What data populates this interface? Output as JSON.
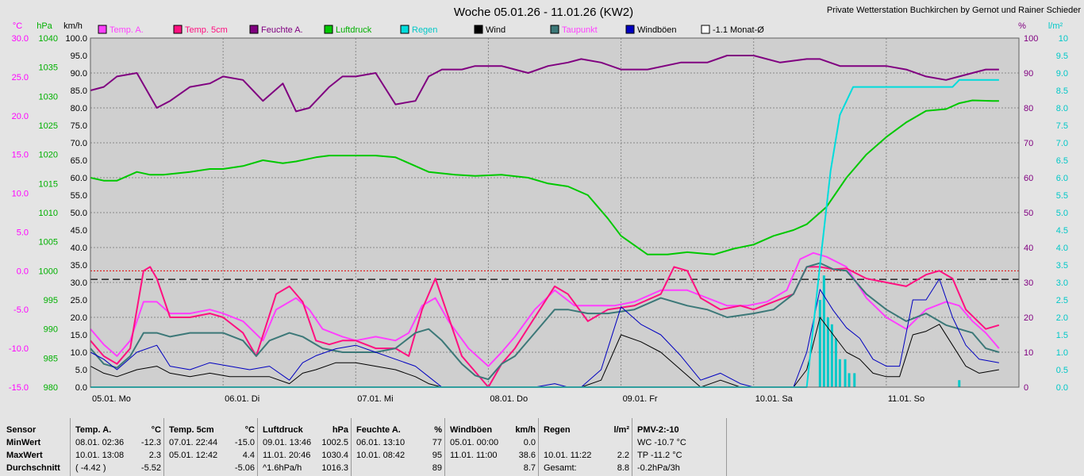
{
  "chart_data": {
    "type": "line",
    "title": "Woche 05.01.26 - 11.01.26 (KW2)",
    "credit": "Private Wetterstation Buchkirchen by Gernot und Rainer Schieder",
    "x_labels": [
      "05.01. Mo",
      "06.01. Di",
      "07.01. Mi",
      "08.01. Do",
      "09.01. Fr",
      "10.01. Sa",
      "11.01. So"
    ],
    "axes": {
      "temp": {
        "unit": "°C",
        "range": [
          -15,
          30
        ],
        "ticks": [
          "30.0",
          "25.0",
          "20.0",
          "15.0",
          "10.0",
          "5.0",
          "0.0",
          "-5.0",
          "-10.0",
          "-15.0"
        ],
        "color": "#ff00ff"
      },
      "pressure": {
        "unit": "hPa",
        "range": [
          980,
          1040
        ],
        "ticks": [
          "1040",
          "1035",
          "1030",
          "1025",
          "1020",
          "1015",
          "1010",
          "1005",
          "1000",
          "995",
          "990",
          "985",
          "980"
        ],
        "color": "#00b000"
      },
      "wind": {
        "unit": "km/h",
        "range": [
          0,
          100
        ],
        "ticks": [
          "100.0",
          "95.0",
          "90.0",
          "85.0",
          "80.0",
          "75.0",
          "70.0",
          "65.0",
          "60.0",
          "55.0",
          "50.0",
          "45.0",
          "40.0",
          "35.0",
          "30.0",
          "25.0",
          "20.0",
          "15.0",
          "10.0",
          "5.0",
          "0.0"
        ],
        "color": "#000000"
      },
      "humidity": {
        "unit": "%",
        "range": [
          0,
          100
        ],
        "ticks": [
          "100",
          "90",
          "80",
          "70",
          "60",
          "50",
          "40",
          "30",
          "20",
          "10",
          "0"
        ],
        "color": "#800080"
      },
      "rain": {
        "unit": "l/m²",
        "range": [
          0,
          10
        ],
        "ticks": [
          "10",
          "9.5",
          "9.0",
          "8.5",
          "8.0",
          "7.5",
          "7.0",
          "6.5",
          "6.0",
          "5.5",
          "5.0",
          "4.5",
          "4.0",
          "3.5",
          "3.0",
          "2.5",
          "2.0",
          "1.5",
          "1.0",
          "0.5",
          "0.0"
        ],
        "color": "#00c8c8"
      }
    },
    "legend": [
      {
        "label": "Temp. A.",
        "color": "#ff40ff",
        "text_color": "#ff40ff"
      },
      {
        "label": "Temp. 5cm",
        "color": "#ff1080",
        "text_color": "#ff1080"
      },
      {
        "label": "Feuchte A.",
        "color": "#800080",
        "text_color": "#800080"
      },
      {
        "label": "Luftdruck",
        "color": "#00c800",
        "text_color": "#00b000"
      },
      {
        "label": "Regen",
        "color": "#00dcdc",
        "text_color": "#00c8c8"
      },
      {
        "label": "Wind",
        "color": "#000000",
        "text_color": "#000000"
      },
      {
        "label": "Taupunkt",
        "color": "#3c7878",
        "text_color": "#ff40ff"
      },
      {
        "label": "Windböen",
        "color": "#0000c0",
        "text_color": "#000000"
      },
      {
        "label": "-1.1 Monat-Ø",
        "color": "#ffffff",
        "text_color": "#000000"
      }
    ],
    "reference_lines": {
      "temp_zero_dotted": 0.0,
      "monthly_mean_dashed": -1.1
    },
    "series": [
      {
        "name": "Feuchte A.",
        "axis": "humidity",
        "color": "#800080",
        "x": [
          0,
          0.1,
          0.2,
          0.35,
          0.5,
          0.6,
          0.75,
          0.9,
          1.0,
          1.15,
          1.3,
          1.45,
          1.55,
          1.65,
          1.8,
          1.9,
          2.0,
          2.15,
          2.3,
          2.45,
          2.55,
          2.65,
          2.8,
          2.9,
          3.1,
          3.3,
          3.45,
          3.6,
          3.7,
          3.85,
          4.0,
          4.2,
          4.45,
          4.65,
          4.8,
          5.0,
          5.2,
          5.4,
          5.5,
          5.65,
          5.8,
          6.0,
          6.15,
          6.3,
          6.45,
          6.55,
          6.65,
          6.75,
          6.85
        ],
        "values": [
          85,
          86,
          89,
          90,
          80,
          82,
          86,
          87,
          89,
          88,
          82,
          87,
          79,
          80,
          86,
          89,
          89,
          90,
          81,
          82,
          89,
          91,
          91,
          92,
          92,
          90,
          92,
          93,
          94,
          93,
          91,
          91,
          93,
          93,
          95,
          95,
          93,
          94,
          94,
          92,
          92,
          92,
          91,
          89,
          88,
          89,
          90,
          91,
          91
        ]
      },
      {
        "name": "Luftdruck",
        "axis": "pressure",
        "color": "#00c800",
        "x": [
          0,
          0.1,
          0.2,
          0.35,
          0.45,
          0.55,
          0.75,
          0.9,
          1.0,
          1.15,
          1.3,
          1.45,
          1.55,
          1.7,
          1.8,
          1.9,
          2.0,
          2.15,
          2.3,
          2.45,
          2.55,
          2.75,
          2.9,
          3.1,
          3.3,
          3.45,
          3.6,
          3.75,
          3.9,
          4.0,
          4.2,
          4.35,
          4.5,
          4.7,
          4.85,
          5.0,
          5.15,
          5.3,
          5.4,
          5.55,
          5.7,
          5.85,
          6.0,
          6.15,
          6.3,
          6.45,
          6.55,
          6.65,
          6.8,
          6.85
        ],
        "values": [
          1016,
          1015.5,
          1015.5,
          1017,
          1016.5,
          1016.5,
          1017,
          1017.5,
          1017.5,
          1018,
          1019,
          1018.5,
          1018.8,
          1019.5,
          1019.8,
          1019.8,
          1019.8,
          1019.8,
          1019.5,
          1018,
          1017,
          1016.5,
          1016.3,
          1016.5,
          1016,
          1015,
          1014.5,
          1013,
          1009,
          1006,
          1002.8,
          1002.8,
          1003.2,
          1002.8,
          1003.8,
          1004.5,
          1006,
          1007,
          1008,
          1011,
          1016,
          1020,
          1023,
          1025.5,
          1027.5,
          1027.8,
          1028.8,
          1029.3,
          1029.2,
          1029.2
        ]
      },
      {
        "name": "Temp. A.",
        "axis": "temp",
        "color": "#ff40ff",
        "x": [
          0,
          0.1,
          0.2,
          0.3,
          0.4,
          0.5,
          0.6,
          0.75,
          0.9,
          1.0,
          1.15,
          1.3,
          1.4,
          1.55,
          1.65,
          1.75,
          1.9,
          2.0,
          2.15,
          2.3,
          2.4,
          2.5,
          2.6,
          2.7,
          2.85,
          3.0,
          3.1,
          3.2,
          3.35,
          3.5,
          3.65,
          3.8,
          3.95,
          4.1,
          4.3,
          4.5,
          4.65,
          4.8,
          4.95,
          5.1,
          5.25,
          5.35,
          5.45,
          5.55,
          5.7,
          5.85,
          6.0,
          6.15,
          6.3,
          6.45,
          6.55,
          6.65,
          6.75,
          6.85
        ],
        "values": [
          -7.5,
          -9.5,
          -11,
          -9,
          -4,
          -4,
          -5.5,
          -5.5,
          -5,
          -5.5,
          -6.5,
          -9,
          -5,
          -3.5,
          -5,
          -7.5,
          -8.5,
          -9,
          -8.5,
          -9,
          -8,
          -4.5,
          -3.5,
          -6.5,
          -10,
          -12.3,
          -10.5,
          -8.5,
          -5,
          -2.5,
          -4.5,
          -4.5,
          -4.5,
          -4,
          -2.5,
          -2.5,
          -3.5,
          -4.5,
          -4.5,
          -4,
          -2.5,
          1.5,
          2.3,
          1.8,
          0.5,
          -3.5,
          -6,
          -7.5,
          -5,
          -4,
          -4.5,
          -6.5,
          -8,
          -10
        ]
      },
      {
        "name": "Temp. 5cm",
        "axis": "temp",
        "color": "#ff1080",
        "x": [
          0,
          0.1,
          0.2,
          0.3,
          0.4,
          0.45,
          0.5,
          0.6,
          0.75,
          0.9,
          1.0,
          1.15,
          1.25,
          1.4,
          1.5,
          1.6,
          1.7,
          1.8,
          1.9,
          2.0,
          2.15,
          2.3,
          2.4,
          2.5,
          2.6,
          2.7,
          2.8,
          2.9,
          3.0,
          3.1,
          3.2,
          3.35,
          3.5,
          3.6,
          3.75,
          3.9,
          4.1,
          4.3,
          4.4,
          4.5,
          4.6,
          4.75,
          4.9,
          5.0,
          5.15,
          5.3,
          5.4,
          5.5,
          5.6,
          5.7,
          5.85,
          6.0,
          6.15,
          6.3,
          6.4,
          6.5,
          6.6,
          6.75,
          6.85
        ],
        "values": [
          -9,
          -11,
          -12,
          -10,
          0,
          0.5,
          -1,
          -6,
          -6,
          -5.5,
          -6,
          -8,
          -11,
          -3,
          -2,
          -4,
          -9,
          -9.5,
          -9,
          -9,
          -10,
          -10,
          -11,
          -5,
          -1,
          -6,
          -11,
          -13,
          -15,
          -12,
          -10,
          -6,
          -2,
          -3,
          -6.5,
          -5,
          -4.5,
          -3,
          0.5,
          0,
          -3.5,
          -5,
          -4.5,
          -5,
          -4,
          -3,
          0.5,
          0.5,
          0.2,
          0.3,
          -1,
          -1.5,
          -2,
          -0.5,
          0,
          -1,
          -5,
          -7.5,
          -7
        ]
      },
      {
        "name": "Taupunkt",
        "axis": "temp",
        "color": "#3c7878",
        "x": [
          0,
          0.1,
          0.2,
          0.3,
          0.4,
          0.5,
          0.6,
          0.75,
          0.9,
          1.0,
          1.15,
          1.25,
          1.35,
          1.5,
          1.6,
          1.75,
          1.9,
          2.0,
          2.15,
          2.3,
          2.45,
          2.55,
          2.65,
          2.8,
          2.9,
          3.0,
          3.1,
          3.2,
          3.35,
          3.5,
          3.6,
          3.75,
          3.9,
          4.1,
          4.3,
          4.5,
          4.65,
          4.8,
          5.0,
          5.15,
          5.3,
          5.4,
          5.5,
          5.6,
          5.7,
          5.85,
          6.0,
          6.15,
          6.3,
          6.45,
          6.55,
          6.65,
          6.75,
          6.85
        ],
        "values": [
          -10,
          -12,
          -12.5,
          -11,
          -8,
          -8,
          -8.5,
          -8,
          -8,
          -8,
          -9,
          -11,
          -9,
          -8,
          -8.5,
          -10,
          -10.5,
          -10.5,
          -10.5,
          -10,
          -8,
          -7.5,
          -9,
          -12,
          -13.5,
          -14,
          -12,
          -11,
          -8,
          -5,
          -5,
          -5.5,
          -5.5,
          -5,
          -3.5,
          -4.5,
          -5,
          -6,
          -5.5,
          -5,
          -3,
          0.5,
          1,
          0.2,
          0,
          -3,
          -5,
          -6.5,
          -5.5,
          -7,
          -7.5,
          -8,
          -10,
          -10.5
        ]
      },
      {
        "name": "Wind",
        "axis": "wind",
        "color": "#000000",
        "x": [
          0,
          0.1,
          0.2,
          0.35,
          0.5,
          0.6,
          0.75,
          0.9,
          1.05,
          1.2,
          1.35,
          1.5,
          1.6,
          1.7,
          1.85,
          2.0,
          2.15,
          2.3,
          2.45,
          2.55,
          2.65,
          2.75,
          2.9,
          3.05,
          3.2,
          3.35,
          3.5,
          3.6,
          3.7,
          3.85,
          4.0,
          4.15,
          4.3,
          4.45,
          4.6,
          4.75,
          4.9,
          5.0,
          5.1,
          5.2,
          5.3,
          5.4,
          5.5,
          5.6,
          5.7,
          5.8,
          5.9,
          6.0,
          6.1,
          6.2,
          6.3,
          6.4,
          6.5,
          6.6,
          6.7,
          6.85
        ],
        "values": [
          6,
          4,
          3,
          5,
          6,
          4,
          3,
          4,
          3,
          3,
          3,
          1,
          4,
          5,
          7,
          7,
          6,
          5,
          3,
          1,
          0,
          0,
          0,
          0,
          0,
          0,
          0,
          0,
          0,
          2,
          15,
          13,
          10,
          5,
          0,
          2,
          0,
          0,
          0,
          0,
          0,
          5,
          20,
          15,
          10,
          8,
          4,
          3,
          3,
          15,
          16,
          18,
          12,
          6,
          4,
          5
        ]
      },
      {
        "name": "Windböen",
        "axis": "wind",
        "color": "#0000c0",
        "x": [
          0,
          0.1,
          0.2,
          0.35,
          0.5,
          0.6,
          0.75,
          0.9,
          1.05,
          1.2,
          1.35,
          1.5,
          1.6,
          1.7,
          1.85,
          2.0,
          2.15,
          2.3,
          2.45,
          2.55,
          2.65,
          2.75,
          2.9,
          3.05,
          3.2,
          3.35,
          3.5,
          3.6,
          3.7,
          3.85,
          4.0,
          4.15,
          4.3,
          4.45,
          4.6,
          4.75,
          4.9,
          5.0,
          5.1,
          5.2,
          5.3,
          5.4,
          5.5,
          5.6,
          5.7,
          5.8,
          5.9,
          6.0,
          6.1,
          6.2,
          6.3,
          6.4,
          6.5,
          6.6,
          6.7,
          6.85
        ],
        "values": [
          10,
          8,
          5,
          10,
          12,
          6,
          5,
          7,
          6,
          5,
          6,
          2,
          7,
          9,
          11,
          12,
          10,
          8,
          6,
          3,
          0,
          0,
          0,
          0,
          0,
          0,
          1,
          0,
          0,
          5,
          23,
          18,
          15,
          9,
          2,
          4,
          1,
          0,
          0,
          0,
          0,
          10,
          28,
          22,
          17,
          14,
          8,
          6,
          6,
          25,
          25,
          31,
          20,
          12,
          8,
          7
        ]
      },
      {
        "name": "Regen",
        "axis": "rain",
        "color": "#00dcdc",
        "x": [
          0,
          5.4,
          5.5,
          5.58,
          5.65,
          5.75,
          5.85,
          5.95,
          6.5,
          6.55,
          6.85
        ],
        "values": [
          0,
          0,
          3.5,
          6.2,
          7.8,
          8.6,
          8.6,
          8.6,
          8.6,
          8.8,
          8.8
        ]
      }
    ],
    "rain_bars": {
      "x": [
        5.5,
        5.53,
        5.56,
        5.59,
        5.62,
        5.65,
        5.69,
        5.72,
        5.76,
        6.55
      ],
      "values": [
        2.5,
        3.2,
        2.0,
        1.8,
        1.4,
        0.8,
        0.8,
        0.4,
        0.4,
        0.2
      ]
    }
  },
  "table": {
    "rows": [
      "Sensor",
      "MinWert",
      "MaxWert",
      "Durchschnitt"
    ],
    "columns": [
      {
        "header": "Temp. A.",
        "unit": "°C",
        "min_time": "08.01.  02:36",
        "min": "-12.3",
        "max_time": "10.01.  13:08",
        "max": "2.3",
        "avg_time": "( -4.42 )",
        "avg": "-5.52"
      },
      {
        "header": "Temp. 5cm",
        "unit": "°C",
        "min_time": "07.01.  22:44",
        "min": "-15.0",
        "max_time": "05.01.  12:42",
        "max": "4.4",
        "avg_time": "",
        "avg": "-5.06"
      },
      {
        "header": "Luftdruck",
        "unit": "hPa",
        "min_time": "09.01.  13:46",
        "min": "1002.5",
        "max_time": "11.01.  20:46",
        "max": "1030.4",
        "avg_time": "^1.6hPa/h",
        "avg": "1016.3"
      },
      {
        "header": "Feuchte A.",
        "unit": "%",
        "min_time": "06.01.  13:10",
        "min": "77",
        "max_time": "10.01.  08:42",
        "max": "95",
        "avg_time": "",
        "avg": "89"
      },
      {
        "header": "Windböen",
        "unit": "km/h",
        "min_time": "05.01.  00:00",
        "min": "0.0",
        "max_time": "11.01.  11:00",
        "max": "38.6",
        "avg_time": "",
        "avg": "8.7"
      },
      {
        "header": "Regen",
        "unit": "l/m²",
        "min_time": "",
        "min": "",
        "max_time": "10.01.  11:22",
        "max": "2.2",
        "avg_time": "Gesamt:",
        "avg": "8.8"
      }
    ],
    "pmv": {
      "header": "PMV-2:-10",
      "line1": "WC -10.7 °C",
      "line2": "TP -11.2 °C",
      "line3": "-0.2hPa/3h"
    }
  }
}
